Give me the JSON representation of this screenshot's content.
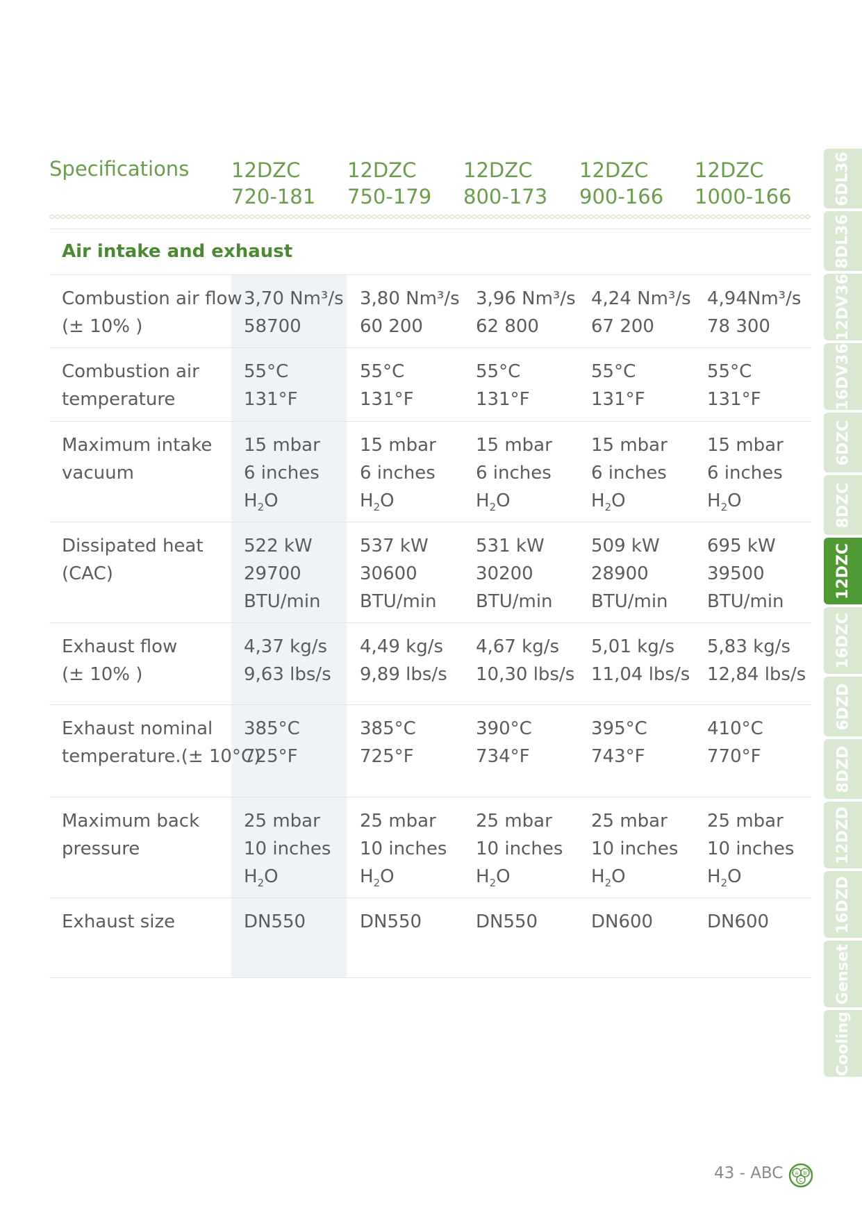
{
  "header": {
    "title": "Specifications",
    "models": [
      {
        "line1": "12DZC",
        "line2": "720-181"
      },
      {
        "line1": "12DZC",
        "line2": "750-179"
      },
      {
        "line1": "12DZC",
        "line2": "800-173"
      },
      {
        "line1": "12DZC",
        "line2": "900-166"
      },
      {
        "line1": "12DZC",
        "line2": "1000-166"
      }
    ]
  },
  "section": {
    "title": "Air intake and exhaust"
  },
  "rows": [
    {
      "label": [
        "Combustion air flow",
        "(± 10% )"
      ],
      "values": [
        [
          "3,70 Nm³/s",
          "58700"
        ],
        [
          "3,80 Nm³/s",
          "60 200"
        ],
        [
          "3,96 Nm³/s",
          "62 800"
        ],
        [
          "4,24 Nm³/s",
          "67 200"
        ],
        [
          "4,94Nm³/s",
          "78 300"
        ]
      ]
    },
    {
      "label": [
        "Combustion air",
        "temperature"
      ],
      "values": [
        [
          "55°C",
          "131°F"
        ],
        [
          "55°C",
          "131°F"
        ],
        [
          "55°C",
          "131°F"
        ],
        [
          "55°C",
          "131°F"
        ],
        [
          "55°C",
          "131°F"
        ]
      ]
    },
    {
      "label": [
        "Maximum intake",
        "vacuum"
      ],
      "values": [
        [
          "15 mbar",
          "6 inches",
          "H2O"
        ],
        [
          "15 mbar",
          "6 inches",
          "H2O"
        ],
        [
          "15 mbar",
          "6 inches",
          "H2O"
        ],
        [
          "15 mbar",
          "6 inches",
          "H2O"
        ],
        [
          "15 mbar",
          "6 inches",
          "H2O"
        ]
      ]
    },
    {
      "label": [
        "Dissipated heat",
        "(CAC)"
      ],
      "values": [
        [
          "522 kW",
          "29700",
          "BTU/min"
        ],
        [
          "537 kW",
          "30600",
          "BTU/min"
        ],
        [
          "531 kW",
          "30200",
          "BTU/min"
        ],
        [
          "509 kW",
          "28900",
          "BTU/min"
        ],
        [
          "695 kW",
          "39500",
          "BTU/min"
        ]
      ]
    },
    {
      "label": [
        "Exhaust flow",
        "(± 10% )"
      ],
      "values": [
        [
          "4,37 kg/s",
          "9,63 lbs/s"
        ],
        [
          "4,49 kg/s",
          "9,89 lbs/s"
        ],
        [
          "4,67 kg/s",
          "10,30 lbs/s"
        ],
        [
          "5,01 kg/s",
          "11,04 lbs/s"
        ],
        [
          "5,83 kg/s",
          "12,84 lbs/s"
        ]
      ]
    },
    {
      "label": [
        "Exhaust nominal",
        "temperature.(± 10°C)"
      ],
      "values": [
        [
          "385°C",
          "725°F"
        ],
        [
          "385°C",
          "725°F"
        ],
        [
          "390°C",
          "734°F"
        ],
        [
          "395°C",
          "743°F"
        ],
        [
          "410°C",
          "770°F"
        ]
      ]
    },
    {
      "label": [
        "Maximum back",
        "pressure"
      ],
      "values": [
        [
          "25 mbar",
          "10 inches",
          "H2O"
        ],
        [
          "25 mbar",
          "10 inches",
          "H2O"
        ],
        [
          "25 mbar",
          "10 inches",
          "H2O"
        ],
        [
          "25 mbar",
          "10 inches",
          "H2O"
        ],
        [
          "25 mbar",
          "10 inches",
          "H2O"
        ]
      ]
    },
    {
      "label": [
        "Exhaust size"
      ],
      "values": [
        [
          "DN550"
        ],
        [
          "DN550"
        ],
        [
          "DN550"
        ],
        [
          "DN600"
        ],
        [
          "DN600"
        ]
      ]
    }
  ],
  "tabs": [
    "6DL36",
    "8DL36",
    "12DV36",
    "16DV36",
    "6DZC",
    "8DZC",
    "12DZC",
    "16DZC",
    "6DZD",
    "8DZD",
    "12DZD",
    "16DZD",
    "Genset",
    "Cooling"
  ],
  "active_tab": "12DZC",
  "colors": {
    "accent": "#6a9e4a",
    "highlight": "#edf3f6",
    "tab": "#d9e8d0",
    "tab_active": "#4f9a35"
  },
  "footer": {
    "page": "43 - ABC",
    "logo_letters": [
      "A",
      "B",
      "C"
    ]
  }
}
